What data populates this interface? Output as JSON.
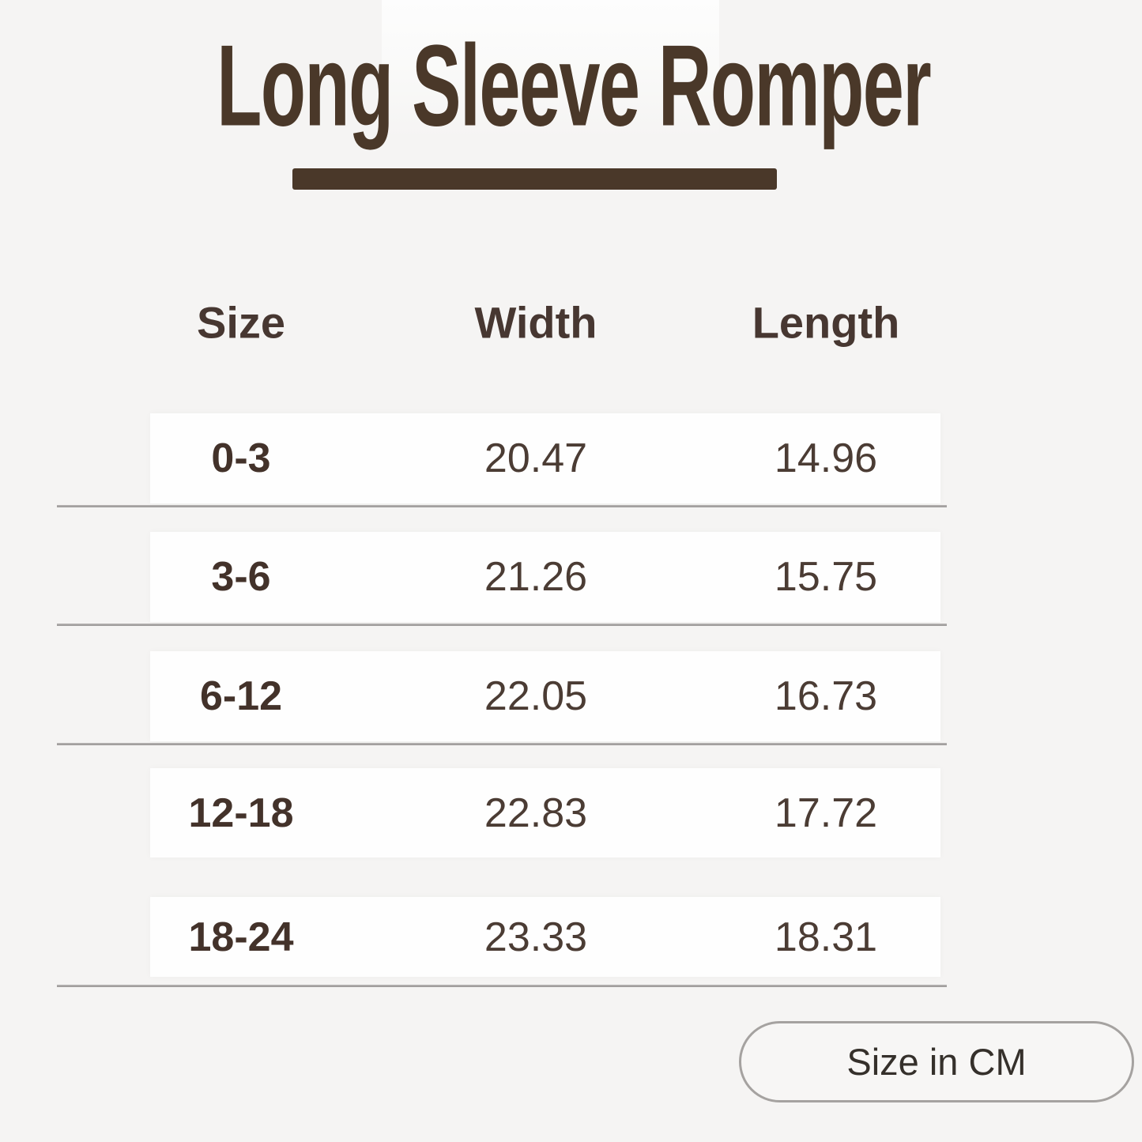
{
  "title": "Long Sleeve Romper",
  "unit_badge": "Size in CM",
  "table": {
    "headers": [
      "Size",
      "Width",
      "Length"
    ],
    "rows": [
      {
        "size": "0-3",
        "width": "20.47",
        "length": "14.96"
      },
      {
        "size": "3-6",
        "width": "21.26",
        "length": "15.75"
      },
      {
        "size": "6-12",
        "width": "22.05",
        "length": "16.73"
      },
      {
        "size": "12-18",
        "width": "22.83",
        "length": "17.72"
      },
      {
        "size": "18-24",
        "width": "23.33",
        "length": "18.31"
      }
    ]
  },
  "chart_data": {
    "type": "table",
    "title": "Long Sleeve Romper",
    "columns": [
      "Size",
      "Width",
      "Length"
    ],
    "rows": [
      [
        "0-3",
        20.47,
        14.96
      ],
      [
        "3-6",
        21.26,
        15.75
      ],
      [
        "6-12",
        22.05,
        16.73
      ],
      [
        "12-18",
        22.83,
        17.72
      ],
      [
        "18-24",
        23.33,
        18.31
      ]
    ],
    "unit_note": "Size in CM"
  },
  "colors": {
    "page_bg": "#f5f4f3",
    "row_bg": "#fefefe",
    "title_brown": "#4a3829",
    "text_dark": "#43322a",
    "number_text": "#4b3c34",
    "divider_gray": "#a5a2a0"
  }
}
